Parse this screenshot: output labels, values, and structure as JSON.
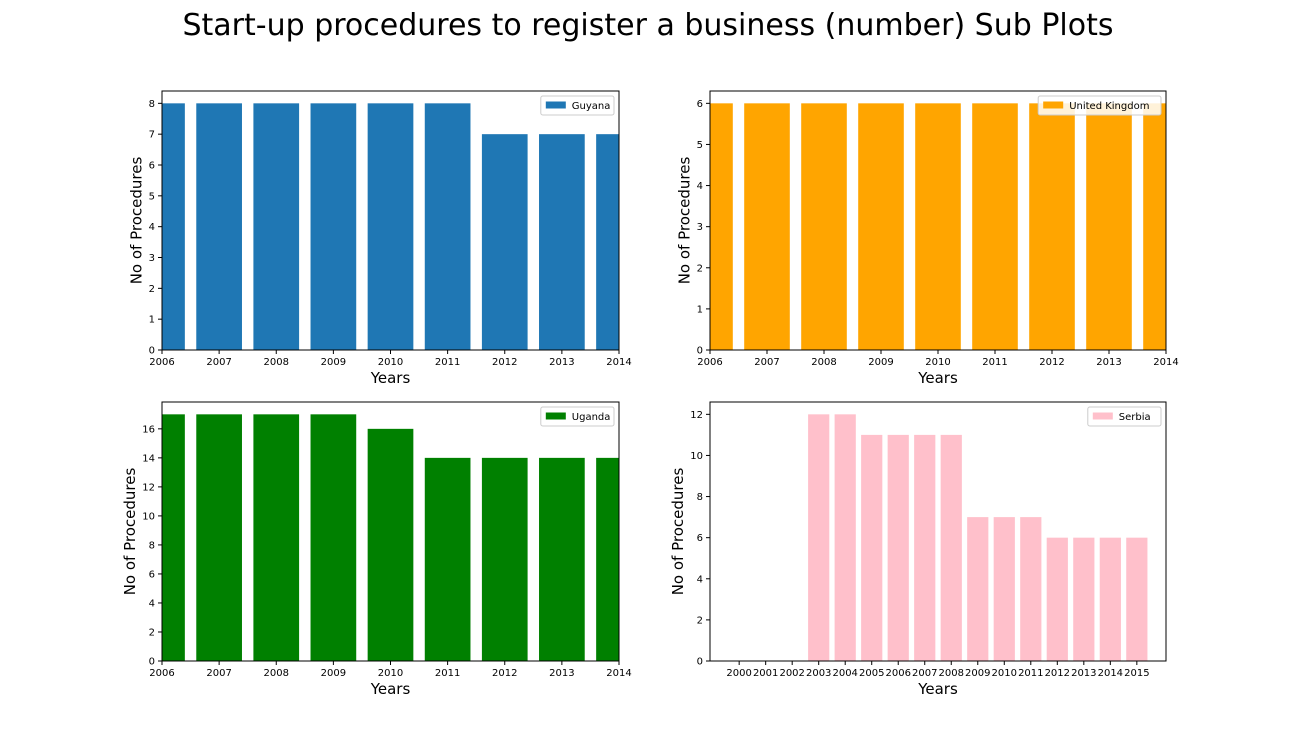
{
  "title": "Start-up procedures to register a business (number) Sub Plots",
  "chart_data": [
    {
      "type": "bar",
      "series": [
        {
          "name": "Guyana",
          "color": "#1f77b4"
        }
      ],
      "categories": [
        "2006",
        "2007",
        "2008",
        "2009",
        "2010",
        "2011",
        "2012",
        "2013",
        "2014"
      ],
      "values": [
        8,
        8,
        8,
        8,
        8,
        8,
        7,
        7,
        7
      ],
      "xlabel": "Years",
      "ylabel": "No of Procedures",
      "xlim": [
        2006,
        2014
      ],
      "ylim": [
        0,
        8.4
      ],
      "xticks": [
        "2006",
        "2007",
        "2008",
        "2009",
        "2010",
        "2011",
        "2012",
        "2013",
        "2014"
      ],
      "yticks": [
        "0",
        "1",
        "2",
        "3",
        "4",
        "5",
        "6",
        "7",
        "8"
      ],
      "legend": "top-right",
      "grid": false
    },
    {
      "type": "bar",
      "series": [
        {
          "name": "United Kingdom",
          "color": "#ffa500"
        }
      ],
      "categories": [
        "2006",
        "2007",
        "2008",
        "2009",
        "2010",
        "2011",
        "2012",
        "2013",
        "2014"
      ],
      "values": [
        6,
        6,
        6,
        6,
        6,
        6,
        6,
        6,
        6
      ],
      "xlabel": "Years",
      "ylabel": "No of Procedures",
      "xlim": [
        2006,
        2014
      ],
      "ylim": [
        0,
        6.3
      ],
      "xticks": [
        "2006",
        "2007",
        "2008",
        "2009",
        "2010",
        "2011",
        "2012",
        "2013",
        "2014"
      ],
      "yticks": [
        "0",
        "1",
        "2",
        "3",
        "4",
        "5",
        "6"
      ],
      "legend": "top-right",
      "grid": false
    },
    {
      "type": "bar",
      "series": [
        {
          "name": "Uganda",
          "color": "#008000"
        }
      ],
      "categories": [
        "2006",
        "2007",
        "2008",
        "2009",
        "2010",
        "2011",
        "2012",
        "2013",
        "2014"
      ],
      "values": [
        17,
        17,
        17,
        17,
        16,
        14,
        14,
        14,
        14
      ],
      "xlabel": "Years",
      "ylabel": "No of Procedures",
      "xlim": [
        2006,
        2014
      ],
      "ylim": [
        0,
        17.85
      ],
      "xticks": [
        "2006",
        "2007",
        "2008",
        "2009",
        "2010",
        "2011",
        "2012",
        "2013",
        "2014"
      ],
      "yticks": [
        "0",
        "2",
        "4",
        "6",
        "8",
        "10",
        "12",
        "14",
        "16"
      ],
      "legend": "top-right",
      "grid": false
    },
    {
      "type": "bar",
      "series": [
        {
          "name": "Serbia",
          "color": "#ffc0cb"
        }
      ],
      "categories": [
        "2000",
        "2001",
        "2002",
        "2003",
        "2004",
        "2005",
        "2006",
        "2007",
        "2008",
        "2009",
        "2010",
        "2011",
        "2012",
        "2013",
        "2014",
        "2015"
      ],
      "values": [
        0,
        0,
        0,
        12,
        12,
        11,
        11,
        11,
        11,
        7,
        7,
        7,
        6,
        6,
        6,
        6
      ],
      "xlabel": "Years",
      "ylabel": "No of Procedures",
      "xlim": [
        1998.9,
        2016.1
      ],
      "ylim": [
        0,
        12.6
      ],
      "xticks": [
        "2000",
        "2001",
        "2002",
        "2003",
        "2004",
        "2005",
        "2006",
        "2007",
        "2008",
        "2009",
        "2010",
        "2011",
        "2012",
        "2013",
        "2014",
        "2015"
      ],
      "yticks": [
        "0",
        "2",
        "4",
        "6",
        "8",
        "10",
        "12"
      ],
      "legend": "top-right",
      "grid": false
    }
  ]
}
